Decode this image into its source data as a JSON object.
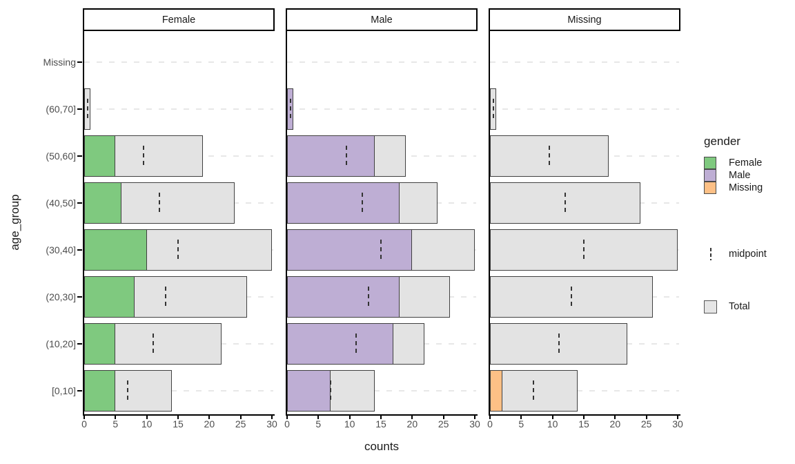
{
  "chart_data": {
    "type": "bar",
    "orientation": "horizontal",
    "faceted": true,
    "facet_titles": [
      "Female",
      "Male",
      "Missing"
    ],
    "xlabel": "counts",
    "ylabel": "age_group",
    "xlim": [
      0,
      30
    ],
    "x_ticks": [
      0,
      5,
      10,
      15,
      20,
      25,
      30
    ],
    "categories_top_to_bottom": [
      "Missing",
      "(60,70]",
      "(50,60]",
      "(40,50]",
      "(30,40]",
      "(20,30]",
      "(10,20]",
      "[0,10]"
    ],
    "series": [
      {
        "name": "Female",
        "color": "#7fc97f",
        "values": [
          0,
          0,
          5,
          6,
          10,
          8,
          5,
          5
        ]
      },
      {
        "name": "Male",
        "color": "#beaed4",
        "values": [
          0,
          1,
          14,
          18,
          20,
          18,
          17,
          7
        ]
      },
      {
        "name": "Missing",
        "color": "#fdc086",
        "values": [
          0,
          0,
          0,
          0,
          0,
          0,
          0,
          2
        ]
      }
    ],
    "totals": [
      0,
      1,
      19,
      24,
      30,
      26,
      22,
      14
    ],
    "midpoints": [
      0,
      0.5,
      9.5,
      12,
      15,
      13,
      11,
      7
    ],
    "legend": {
      "title": "gender",
      "entries": [
        {
          "label": "Female",
          "color": "#7fc97f"
        },
        {
          "label": "Male",
          "color": "#beaed4"
        },
        {
          "label": "Missing",
          "color": "#fdc086"
        }
      ],
      "midpoint_label": "midpoint",
      "total_label": "Total"
    },
    "colors": {
      "total_fill": "#e3e3e3",
      "bar_border": "#404040",
      "grid": "#e7e7e7",
      "axis": "#000000",
      "tick_label": "#4d4d4d",
      "midpoint": "#333333"
    },
    "grid_style": "dashed horizontal",
    "legend_position": "right"
  }
}
